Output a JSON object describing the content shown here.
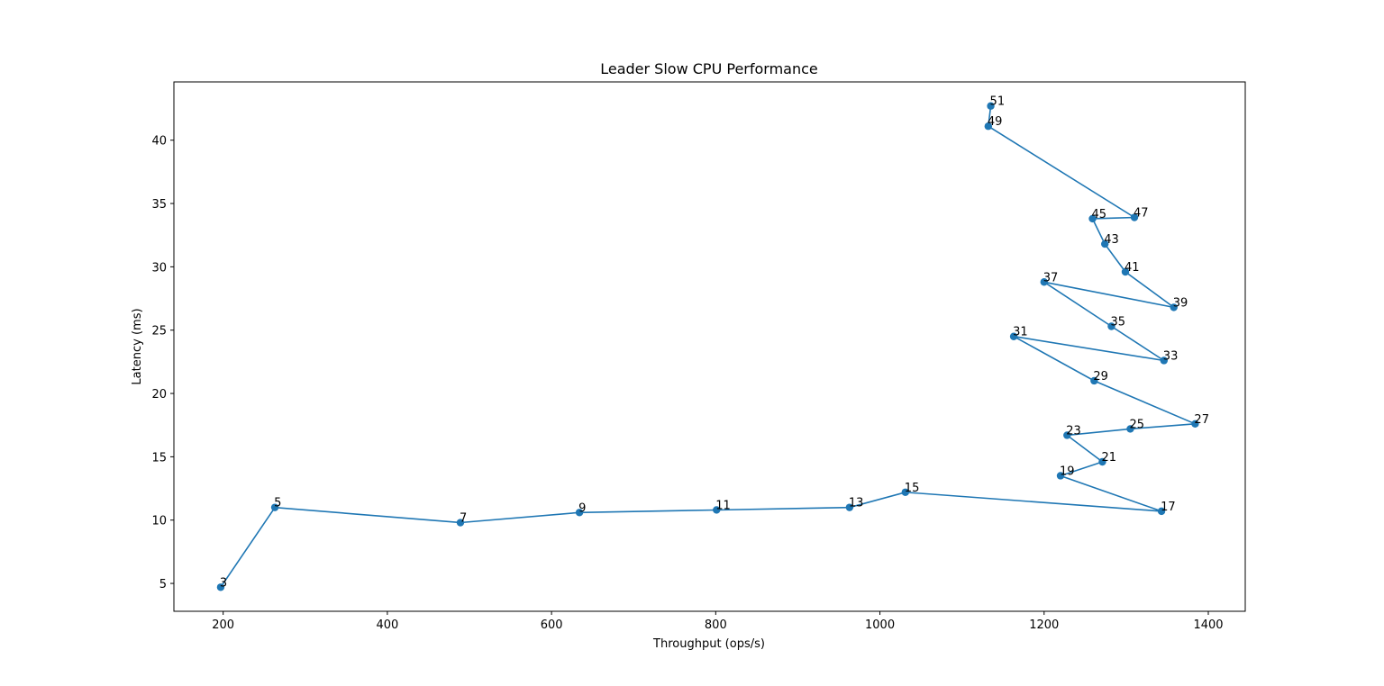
{
  "chart_data": {
    "type": "line",
    "title": "Leader Slow CPU Performance",
    "xlabel": "Throughput (ops/s)",
    "ylabel": "Latency (ms)",
    "xlim": [
      140,
      1445
    ],
    "ylim": [
      2.8,
      44.6
    ],
    "xticks": [
      200,
      400,
      600,
      800,
      1000,
      1200,
      1400
    ],
    "yticks": [
      5,
      10,
      15,
      20,
      25,
      30,
      35,
      40
    ],
    "grid": false,
    "color": "#1f77b4",
    "points": [
      {
        "label": "3",
        "x": 197,
        "y": 4.7
      },
      {
        "label": "5",
        "x": 263,
        "y": 11.0
      },
      {
        "label": "7",
        "x": 489,
        "y": 9.8
      },
      {
        "label": "9",
        "x": 634,
        "y": 10.6
      },
      {
        "label": "11",
        "x": 801,
        "y": 10.8
      },
      {
        "label": "13",
        "x": 963,
        "y": 11.0
      },
      {
        "label": "15",
        "x": 1031,
        "y": 12.2
      },
      {
        "label": "17",
        "x": 1343,
        "y": 10.7
      },
      {
        "label": "19",
        "x": 1220,
        "y": 13.5
      },
      {
        "label": "21",
        "x": 1271,
        "y": 14.6
      },
      {
        "label": "23",
        "x": 1228,
        "y": 16.7
      },
      {
        "label": "25",
        "x": 1305,
        "y": 17.2
      },
      {
        "label": "27",
        "x": 1384,
        "y": 17.6
      },
      {
        "label": "29",
        "x": 1261,
        "y": 21.0
      },
      {
        "label": "31",
        "x": 1163,
        "y": 24.5
      },
      {
        "label": "33",
        "x": 1346,
        "y": 22.6
      },
      {
        "label": "35",
        "x": 1282,
        "y": 25.3
      },
      {
        "label": "37",
        "x": 1200,
        "y": 28.8
      },
      {
        "label": "39",
        "x": 1358,
        "y": 26.8
      },
      {
        "label": "41",
        "x": 1299,
        "y": 29.6
      },
      {
        "label": "43",
        "x": 1274,
        "y": 31.8
      },
      {
        "label": "45",
        "x": 1259,
        "y": 33.8
      },
      {
        "label": "47",
        "x": 1310,
        "y": 33.9
      },
      {
        "label": "49",
        "x": 1132,
        "y": 41.1
      },
      {
        "label": "51",
        "x": 1135,
        "y": 42.7
      }
    ]
  }
}
